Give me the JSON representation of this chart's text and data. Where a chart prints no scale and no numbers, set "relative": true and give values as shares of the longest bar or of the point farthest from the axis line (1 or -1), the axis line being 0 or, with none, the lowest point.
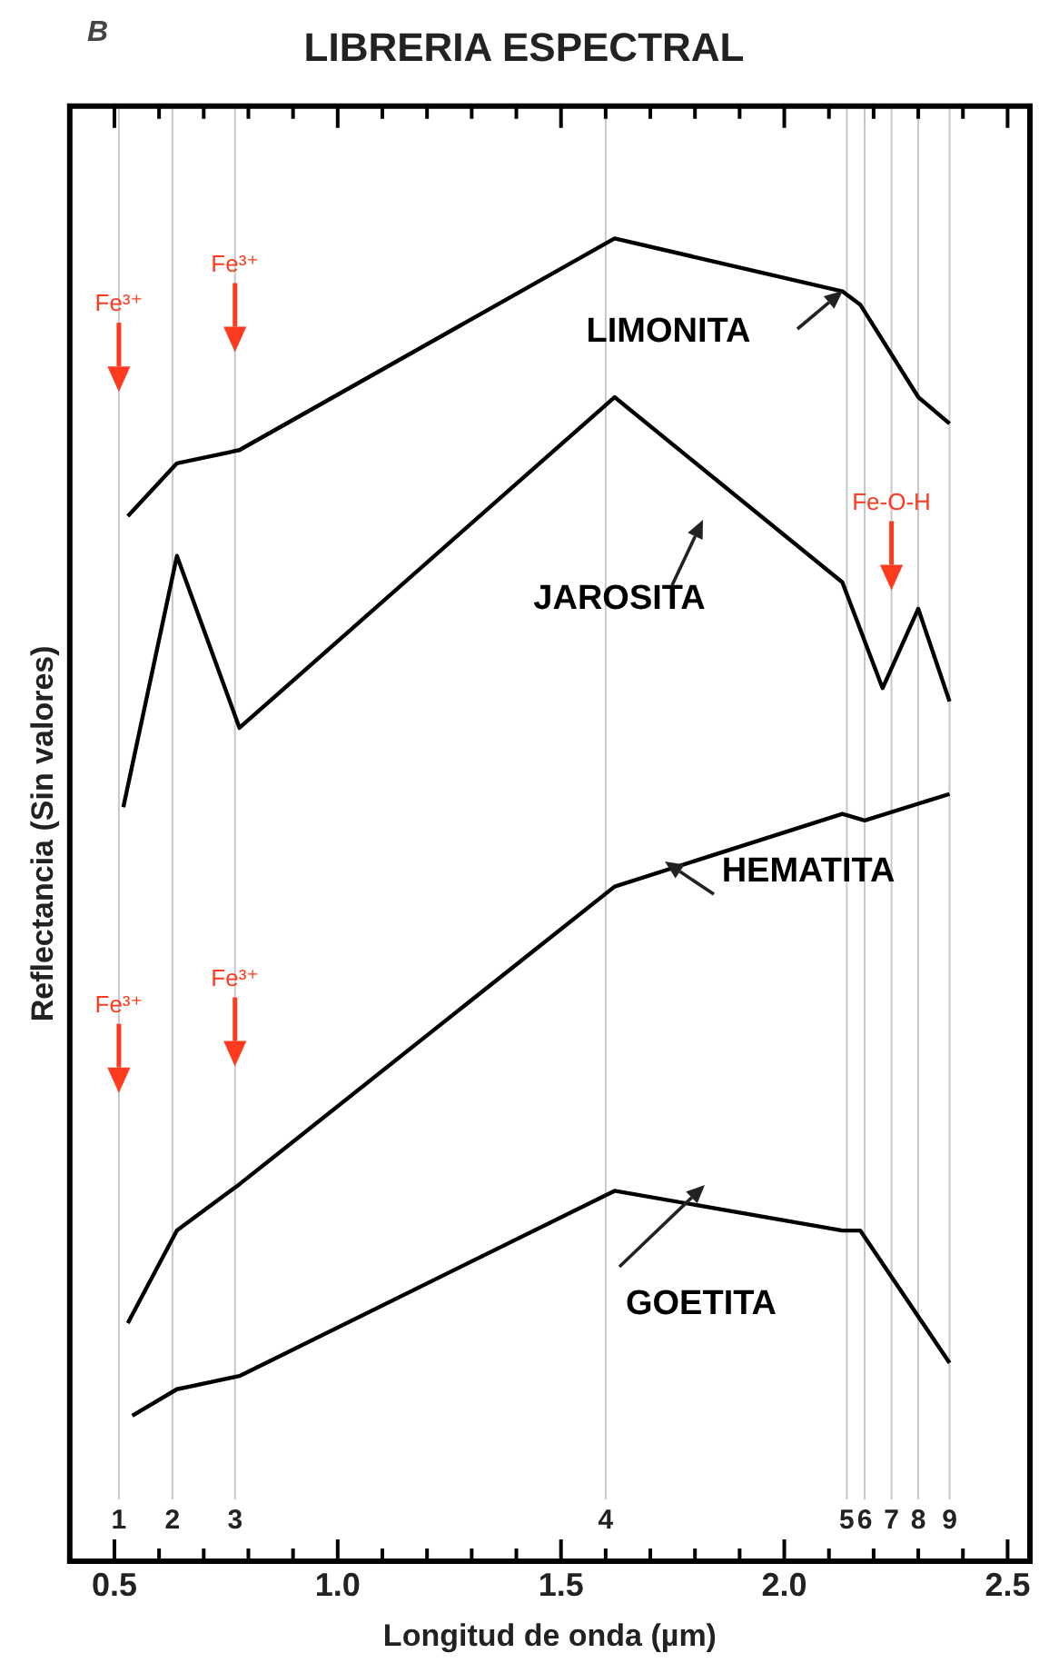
{
  "chart_data": {
    "type": "line",
    "title": "LIBRERIA ESPECTRAL",
    "xlabel": "Longitud de onda (µm)",
    "ylabel": "Reflectancia (Sin valores)",
    "relative": true,
    "legend": false,
    "marker": "none",
    "line_style": "solid",
    "tick_labels": "x",
    "xlim": [
      0.4,
      2.55
    ],
    "xticks": [
      {
        "value": 0.5,
        "label": "0.5"
      },
      {
        "value": 0.6,
        "label": null
      },
      {
        "value": 0.7,
        "label": null
      },
      {
        "value": 0.8,
        "label": null
      },
      {
        "value": 0.9,
        "label": null
      },
      {
        "value": 1.0,
        "label": "1.0"
      },
      {
        "value": 1.1,
        "label": null
      },
      {
        "value": 1.2,
        "label": null
      },
      {
        "value": 1.3,
        "label": null
      },
      {
        "value": 1.4,
        "label": null
      },
      {
        "value": 1.5,
        "label": "1.5"
      },
      {
        "value": 1.6,
        "label": null
      },
      {
        "value": 1.7,
        "label": null
      },
      {
        "value": 1.8,
        "label": null
      },
      {
        "value": 1.9,
        "label": null
      },
      {
        "value": 2.0,
        "label": "2.0"
      },
      {
        "value": 2.1,
        "label": null
      },
      {
        "value": 2.2,
        "label": null
      },
      {
        "value": 2.3,
        "label": null
      },
      {
        "value": 2.4,
        "label": null
      },
      {
        "value": 2.5,
        "label": "2.5"
      }
    ],
    "series": [
      {
        "name": "LIMONITA",
        "color": "#000000",
        "x": [
          0.53,
          0.64,
          0.78,
          1.62,
          2.13,
          2.17,
          2.3,
          2.37
        ],
        "values": [
          0.79,
          0.83,
          0.84,
          1,
          0.96,
          0.95,
          0.88,
          0.86
        ]
      },
      {
        "name": "JAROSITA",
        "color": "#000000",
        "x": [
          0.52,
          0.64,
          0.78,
          1.62,
          2.13,
          2.22,
          2.3,
          2.37
        ],
        "values": [
          0.57,
          0.76,
          0.63,
          0.88,
          0.74,
          0.66,
          0.72,
          0.65
        ]
      },
      {
        "name": "HEMATITA",
        "color": "#000000",
        "x": [
          0.53,
          0.64,
          0.78,
          1.62,
          2.13,
          2.18,
          2.37
        ],
        "values": [
          0.18,
          0.25,
          0.285,
          0.51,
          0.565,
          0.56,
          0.58
        ]
      },
      {
        "name": "GOETITA",
        "color": "#000000",
        "x": [
          0.54,
          0.64,
          0.78,
          1.62,
          2.13,
          2.17,
          2.37
        ],
        "values": [
          0.11,
          0.13,
          0.14,
          0.28,
          0.25,
          0.25,
          0.15
        ]
      }
    ],
    "ref_lines": [
      {
        "axis": "x",
        "value": 0.51,
        "color": "#c8c8c8"
      },
      {
        "axis": "x",
        "value": 0.63,
        "color": "#c8c8c8"
      },
      {
        "axis": "x",
        "value": 0.77,
        "color": "#c8c8c8"
      },
      {
        "axis": "x",
        "value": 1.6,
        "color": "#c8c8c8"
      },
      {
        "axis": "x",
        "value": 2.14,
        "color": "#c8c8c8"
      },
      {
        "axis": "x",
        "value": 2.18,
        "color": "#c8c8c8"
      },
      {
        "axis": "x",
        "value": 2.24,
        "color": "#c8c8c8"
      },
      {
        "axis": "x",
        "value": 2.3,
        "color": "#c8c8c8"
      },
      {
        "axis": "x",
        "value": 2.37,
        "color": "#c8c8c8"
      }
    ],
    "annotations": [
      "B",
      "1",
      "2",
      "3",
      "4",
      "5",
      "6",
      "7",
      "8",
      "9",
      {
        "text": "Fe³⁺",
        "x": 0.51,
        "y": 0.95
      },
      {
        "text": "Fe³⁺",
        "x": 0.77,
        "y": 0.98
      },
      {
        "text": "Fe-O-H",
        "x": 2.24,
        "y": 0.8
      },
      {
        "text": "Fe³⁺",
        "x": 0.51,
        "y": 0.42
      },
      {
        "text": "Fe³⁺",
        "x": 0.77,
        "y": 0.44
      }
    ]
  }
}
